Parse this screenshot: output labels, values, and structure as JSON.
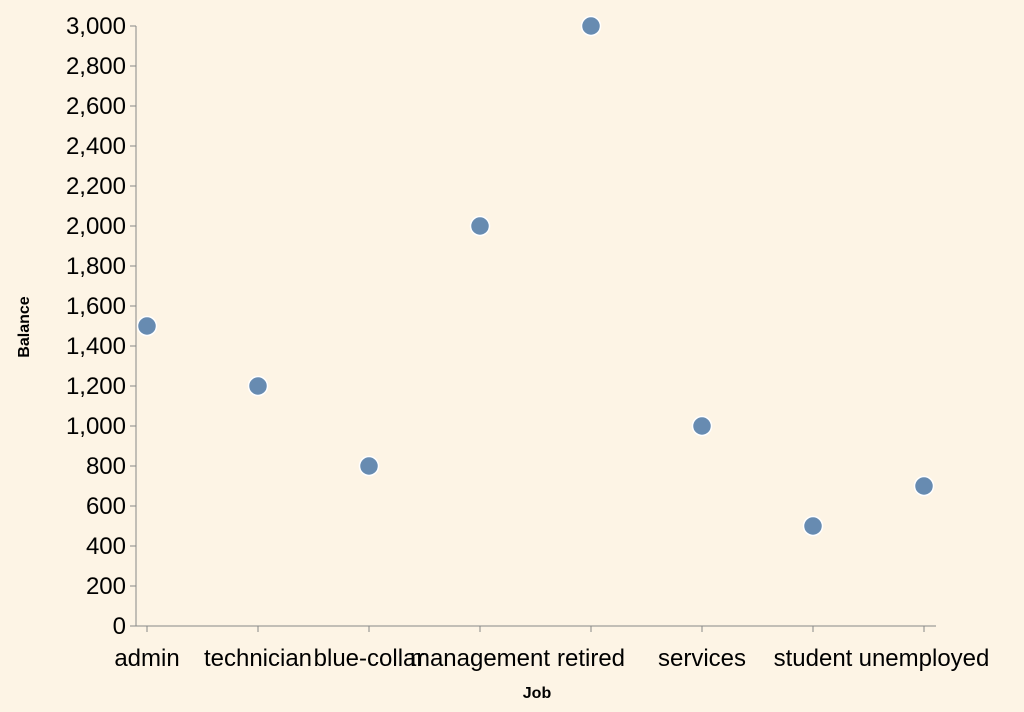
{
  "chart_data": {
    "type": "scatter",
    "title": "",
    "xlabel": "Job",
    "ylabel": "Balance",
    "categories": [
      "admin",
      "technician",
      "blue-collar",
      "management",
      "retired",
      "services",
      "student",
      "unemployed"
    ],
    "values": [
      1500,
      1200,
      800,
      2000,
      3000,
      1000,
      500,
      700
    ],
    "ylim": [
      0,
      3000
    ],
    "yticks": [
      "0",
      "200",
      "400",
      "600",
      "800",
      "1,000",
      "1,200",
      "1,400",
      "1,600",
      "1,800",
      "2,000",
      "2,200",
      "2,400",
      "2,600",
      "2,800",
      "3,000"
    ],
    "grid": false,
    "colors": {
      "point": "#4c78a8",
      "axis": "#888888",
      "background": "#fdf4e5"
    }
  }
}
